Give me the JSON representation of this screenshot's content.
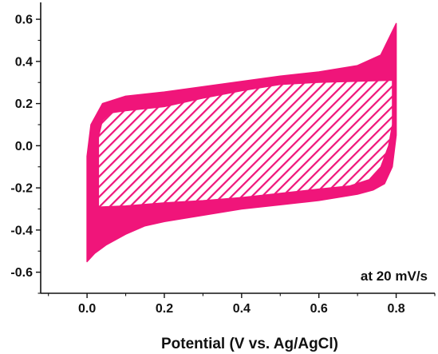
{
  "chart_data": {
    "type": "line",
    "title": "",
    "xlabel": "Potential (V vs. Ag/AgCl)",
    "ylabel": "",
    "xlim": [
      -0.12,
      0.9
    ],
    "ylim": [
      -0.7,
      0.68
    ],
    "x_ticks": [
      0.0,
      0.2,
      0.4,
      0.6,
      0.8
    ],
    "x_tick_labels": [
      "0.0",
      "0.2",
      "0.4",
      "0.6",
      "0.8"
    ],
    "y_ticks": [
      0.6,
      0.4,
      0.2,
      0.0,
      -0.2,
      -0.4,
      -0.6
    ],
    "y_tick_labels": [
      "0.6",
      "0.4",
      "0.2",
      "0.0",
      "-0.2",
      "-0.4",
      "-0.6"
    ],
    "grid": false,
    "annotation": "at 20 mV/s",
    "series_color": "#f0157a",
    "series": [
      {
        "role": "outer-envelope",
        "points": [
          [
            0.0,
            -0.55
          ],
          [
            0.0,
            -0.05
          ],
          [
            0.01,
            0.1
          ],
          [
            0.04,
            0.2
          ],
          [
            0.1,
            0.235
          ],
          [
            0.2,
            0.255
          ],
          [
            0.3,
            0.28
          ],
          [
            0.4,
            0.305
          ],
          [
            0.5,
            0.33
          ],
          [
            0.6,
            0.35
          ],
          [
            0.7,
            0.38
          ],
          [
            0.76,
            0.43
          ],
          [
            0.8,
            0.58
          ],
          [
            0.8,
            0.05
          ],
          [
            0.79,
            -0.1
          ],
          [
            0.77,
            -0.18
          ],
          [
            0.74,
            -0.21
          ],
          [
            0.7,
            -0.23
          ],
          [
            0.6,
            -0.26
          ],
          [
            0.5,
            -0.28
          ],
          [
            0.4,
            -0.3
          ],
          [
            0.3,
            -0.33
          ],
          [
            0.2,
            -0.36
          ],
          [
            0.15,
            -0.38
          ],
          [
            0.1,
            -0.42
          ],
          [
            0.05,
            -0.47
          ],
          [
            0.02,
            -0.51
          ],
          [
            0.0,
            -0.55
          ]
        ]
      },
      {
        "role": "inner-envelope",
        "points": [
          [
            0.03,
            -0.29
          ],
          [
            0.03,
            0.04
          ],
          [
            0.04,
            0.12
          ],
          [
            0.06,
            0.155
          ],
          [
            0.1,
            0.165
          ],
          [
            0.2,
            0.185
          ],
          [
            0.3,
            0.225
          ],
          [
            0.4,
            0.26
          ],
          [
            0.5,
            0.29
          ],
          [
            0.6,
            0.3
          ],
          [
            0.7,
            0.305
          ],
          [
            0.79,
            0.31
          ],
          [
            0.79,
            0.1
          ],
          [
            0.78,
            0.0
          ],
          [
            0.76,
            -0.1
          ],
          [
            0.73,
            -0.16
          ],
          [
            0.68,
            -0.19
          ],
          [
            0.6,
            -0.205
          ],
          [
            0.5,
            -0.225
          ],
          [
            0.4,
            -0.245
          ],
          [
            0.3,
            -0.26
          ],
          [
            0.2,
            -0.27
          ],
          [
            0.1,
            -0.285
          ],
          [
            0.03,
            -0.29
          ]
        ]
      }
    ]
  }
}
